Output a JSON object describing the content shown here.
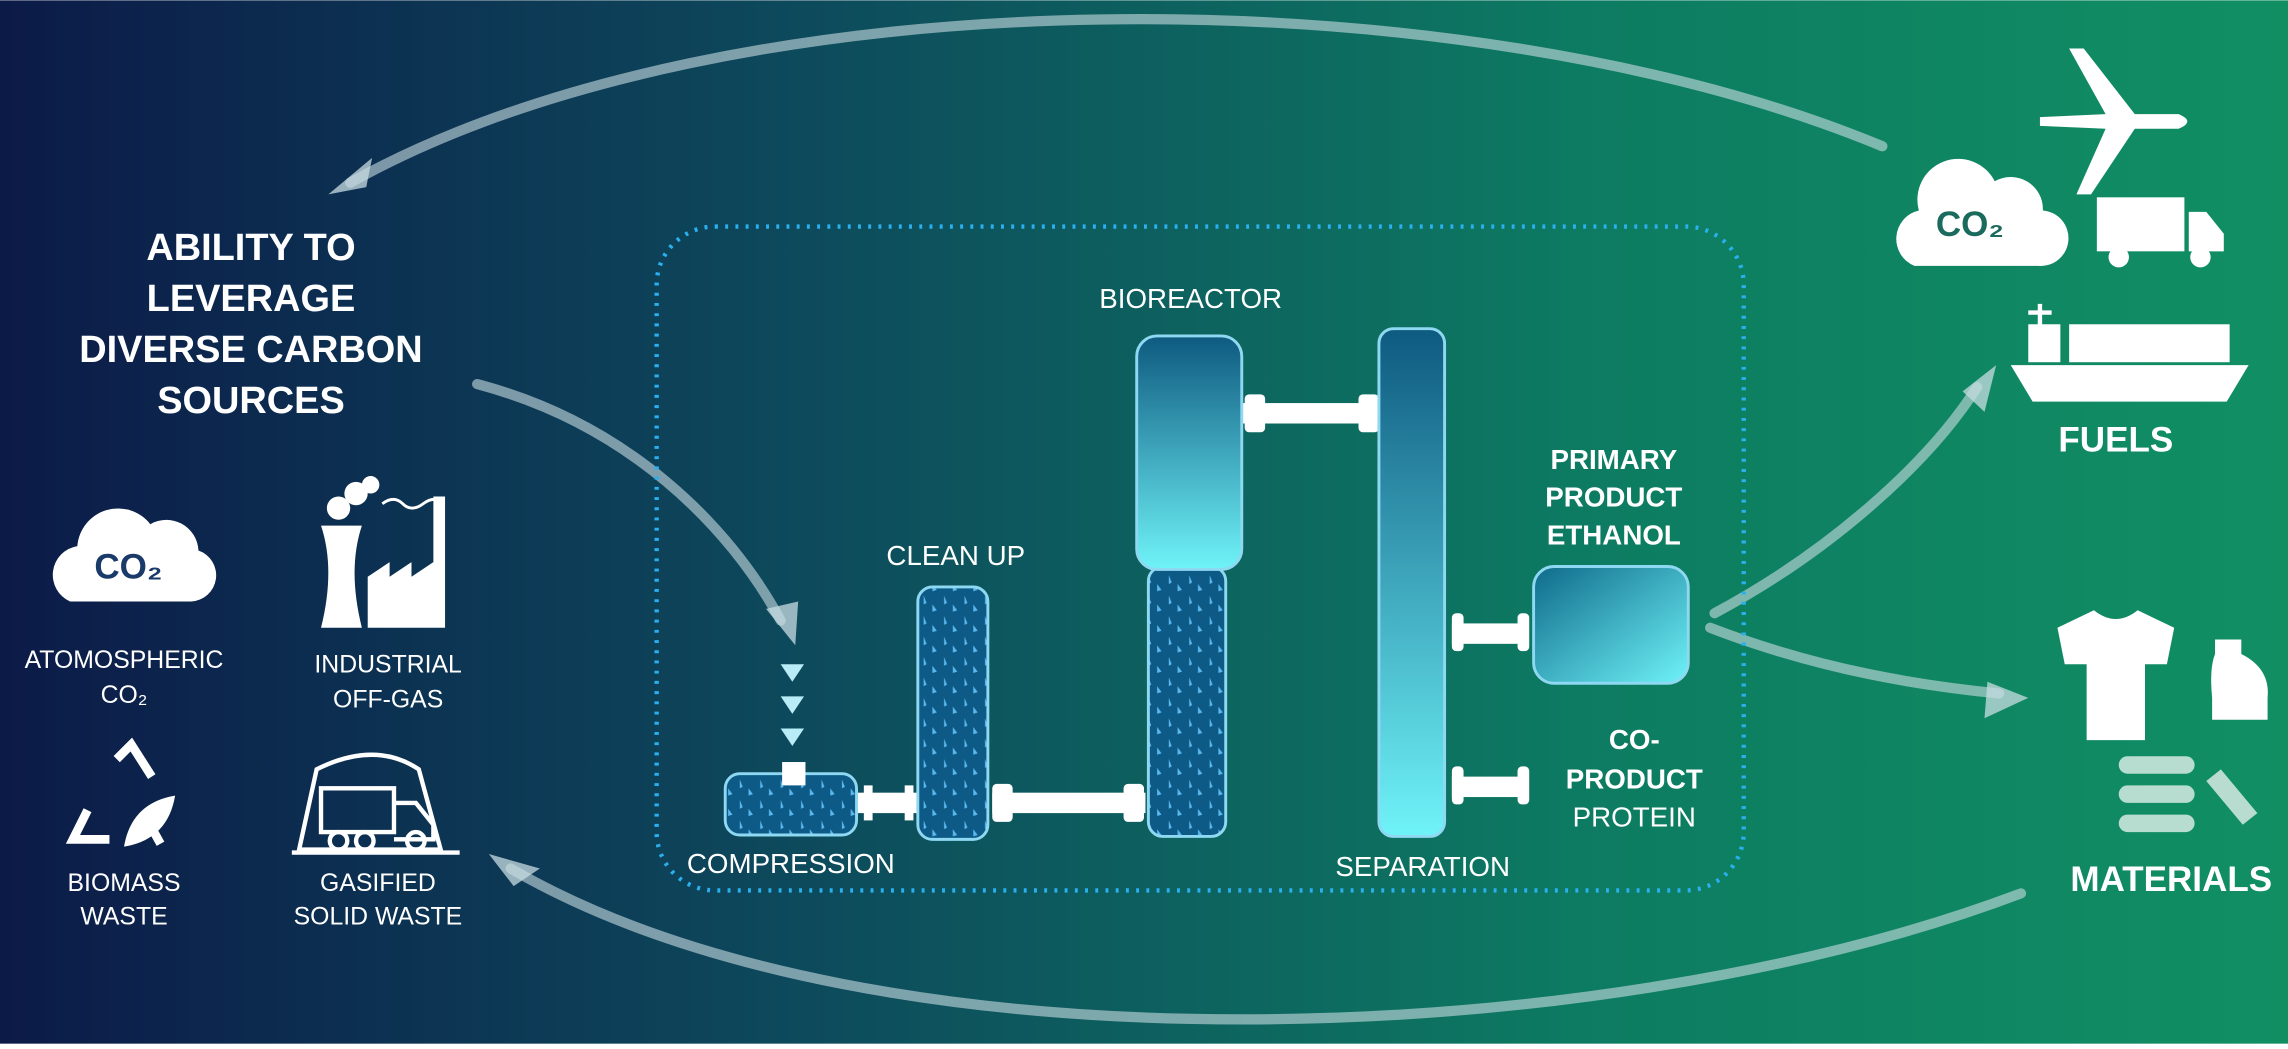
{
  "sources": {
    "title": [
      "ABILITY TO",
      "LEVERAGE",
      "DIVERSE CARBON",
      "SOURCES"
    ],
    "items": [
      {
        "icon_label": "CO₂",
        "label": [
          "ATOMOSPHERIC",
          "CO₂"
        ]
      },
      {
        "label": [
          "INDUSTRIAL",
          "OFF-GAS"
        ]
      },
      {
        "label": [
          "BIOMASS",
          "WASTE"
        ]
      },
      {
        "label": [
          "GASIFIED",
          "SOLID WASTE"
        ]
      }
    ]
  },
  "process": {
    "compression": "COMPRESSION",
    "clean_up": "CLEAN UP",
    "bioreactor": "BIOREACTOR",
    "separation": "SEPARATION",
    "primary_product": [
      "PRIMARY",
      "PRODUCT",
      "ETHANOL"
    ],
    "co_product": [
      "CO-",
      "PRODUCT",
      "PROTEIN"
    ]
  },
  "outputs": {
    "fuels_icon_label": "CO₂",
    "fuels": "FUELS",
    "materials": "MATERIALS"
  }
}
